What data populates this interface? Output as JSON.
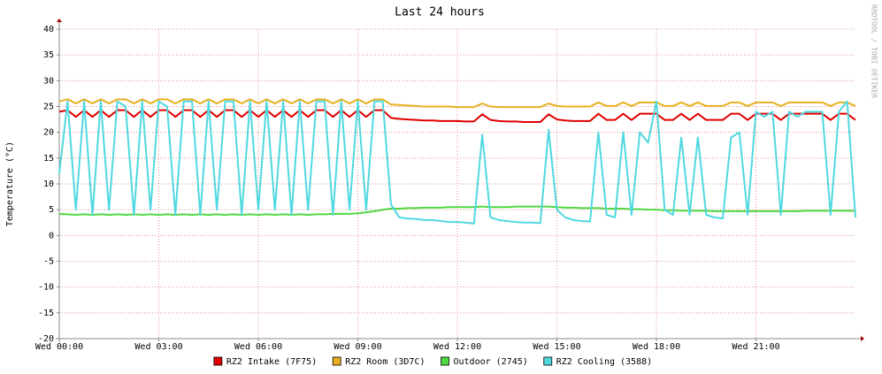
{
  "chart_data": {
    "type": "line",
    "title": "Last 24 hours",
    "y_label": "Temperature (°C)",
    "watermark": "RRDTOOL / TOBI OETIKER",
    "xlim": [
      0,
      24
    ],
    "ylim": [
      -20,
      40
    ],
    "xticks": [
      {
        "value": 0,
        "label": "Wed 00:00"
      },
      {
        "value": 3,
        "label": "Wed 03:00"
      },
      {
        "value": 6,
        "label": "Wed 06:00"
      },
      {
        "value": 9,
        "label": "Wed 09:00"
      },
      {
        "value": 12,
        "label": "Wed 12:00"
      },
      {
        "value": 15,
        "label": "Wed 15:00"
      },
      {
        "value": 18,
        "label": "Wed 18:00"
      },
      {
        "value": 21,
        "label": "Wed 21:00"
      }
    ],
    "yticks": [
      -20,
      -15,
      -10,
      -5,
      0,
      5,
      10,
      15,
      20,
      25,
      30,
      35,
      40
    ],
    "grid": true,
    "legend": "bottom",
    "x": [
      0,
      0.25,
      0.5,
      0.75,
      1,
      1.25,
      1.5,
      1.75,
      2,
      2.25,
      2.5,
      2.75,
      3,
      3.25,
      3.5,
      3.75,
      4,
      4.25,
      4.5,
      4.75,
      5,
      5.25,
      5.5,
      5.75,
      6,
      6.25,
      6.5,
      6.75,
      7,
      7.25,
      7.5,
      7.75,
      8,
      8.25,
      8.5,
      8.75,
      9,
      9.25,
      9.5,
      9.75,
      10,
      10.25,
      10.5,
      10.75,
      11,
      11.25,
      11.5,
      11.75,
      12,
      12.25,
      12.5,
      12.75,
      13,
      13.25,
      13.5,
      13.75,
      14,
      14.25,
      14.5,
      14.75,
      15,
      15.25,
      15.5,
      15.75,
      16,
      16.25,
      16.5,
      16.75,
      17,
      17.25,
      17.5,
      17.75,
      18,
      18.25,
      18.5,
      18.75,
      19,
      19.25,
      19.5,
      19.75,
      20,
      20.25,
      20.5,
      20.75,
      21,
      21.25,
      21.5,
      21.75,
      22,
      22.25,
      22.5,
      22.75,
      23,
      23.25,
      23.5,
      23.75,
      24
    ],
    "series": [
      {
        "name": "RZ2 Intake (7F75)",
        "color": "#e00000",
        "values": [
          24,
          24.3,
          23,
          24.3,
          23,
          24.3,
          23,
          24.3,
          24.3,
          23,
          24.3,
          23,
          24.3,
          24.3,
          23,
          24.3,
          24.3,
          23,
          24.3,
          23,
          24.3,
          24.3,
          23,
          24.3,
          23,
          24.3,
          23,
          24.3,
          23,
          24.3,
          23,
          24.3,
          24.3,
          23,
          24.3,
          23,
          24.3,
          23,
          24.3,
          24.3,
          22.8,
          22.6,
          22.5,
          22.4,
          22.3,
          22.3,
          22.2,
          22.2,
          22.2,
          22.1,
          22.1,
          23.5,
          22.4,
          22.2,
          22.1,
          22.1,
          22,
          22,
          22,
          23.5,
          22.5,
          22.3,
          22.2,
          22.2,
          22.2,
          23.6,
          22.4,
          22.4,
          23.6,
          22.4,
          23.6,
          23.6,
          23.6,
          22.4,
          22.4,
          23.6,
          22.4,
          23.6,
          22.4,
          22.4,
          22.4,
          23.6,
          23.6,
          22.4,
          23.6,
          23.6,
          23.6,
          22.4,
          23.6,
          23.6,
          23.6,
          23.6,
          23.6,
          22.4,
          23.6,
          23.6,
          22.4
        ]
      },
      {
        "name": "RZ2 Room (3D7C)",
        "color": "#e8b020",
        "values": [
          26,
          26.4,
          25.6,
          26.4,
          25.6,
          26.4,
          25.6,
          26.4,
          26.4,
          25.6,
          26.4,
          25.6,
          26.4,
          26.4,
          25.6,
          26.4,
          26.4,
          25.6,
          26.4,
          25.6,
          26.4,
          26.4,
          25.6,
          26.4,
          25.6,
          26.4,
          25.6,
          26.4,
          25.6,
          26.4,
          25.6,
          26.4,
          26.4,
          25.6,
          26.4,
          25.6,
          26.4,
          25.6,
          26.4,
          26.4,
          25.4,
          25.3,
          25.2,
          25.1,
          25,
          25,
          25,
          25,
          24.9,
          24.9,
          24.9,
          25.6,
          25,
          24.9,
          24.9,
          24.9,
          24.9,
          24.9,
          24.9,
          25.6,
          25.1,
          25,
          25,
          25,
          25,
          25.8,
          25.1,
          25.1,
          25.8,
          25.1,
          25.8,
          25.8,
          25.8,
          25.1,
          25.1,
          25.8,
          25.1,
          25.8,
          25.1,
          25.1,
          25.1,
          25.8,
          25.8,
          25.1,
          25.8,
          25.8,
          25.8,
          25.1,
          25.8,
          25.8,
          25.8,
          25.8,
          25.8,
          25.1,
          25.8,
          25.8,
          25.1
        ]
      },
      {
        "name": "Outdoor (2745)",
        "color": "#50d840",
        "values": [
          4.2,
          4.1,
          4,
          4.1,
          4,
          4.1,
          4,
          4.1,
          4,
          4.1,
          4,
          4.1,
          4,
          4.1,
          4,
          4.1,
          4,
          4.1,
          4,
          4.1,
          4,
          4.1,
          4,
          4.1,
          4,
          4.1,
          4,
          4.1,
          4,
          4.1,
          4,
          4.1,
          4.1,
          4.2,
          4.2,
          4.2,
          4.3,
          4.5,
          4.7,
          5,
          5.2,
          5.2,
          5.3,
          5.3,
          5.4,
          5.4,
          5.4,
          5.5,
          5.5,
          5.5,
          5.5,
          5.6,
          5.5,
          5.5,
          5.5,
          5.6,
          5.6,
          5.6,
          5.6,
          5.6,
          5.5,
          5.4,
          5.4,
          5.3,
          5.3,
          5.3,
          5.2,
          5.2,
          5.2,
          5.1,
          5.1,
          5,
          5,
          4.9,
          4.9,
          4.8,
          4.8,
          4.8,
          4.8,
          4.7,
          4.7,
          4.7,
          4.7,
          4.7,
          4.7,
          4.7,
          4.7,
          4.7,
          4.7,
          4.7,
          4.8,
          4.8,
          4.8,
          4.8,
          4.8,
          4.8,
          4.8
        ]
      },
      {
        "name": "RZ2 Cooling (3588)",
        "color": "#50d8e0",
        "values": [
          12,
          26,
          5,
          26,
          4,
          26,
          5,
          26,
          25,
          4,
          26,
          5,
          26,
          25,
          4,
          26,
          26,
          4,
          26,
          5,
          26,
          26,
          4,
          26,
          5,
          26,
          5,
          26,
          4,
          26,
          5,
          26,
          26,
          4,
          26,
          5,
          26,
          5,
          26,
          26,
          6,
          3.5,
          3.3,
          3.2,
          3.0,
          3.0,
          2.8,
          2.6,
          2.6,
          2.5,
          2.3,
          19.5,
          3.5,
          3.0,
          2.8,
          2.6,
          2.5,
          2.5,
          2.4,
          20.5,
          5,
          3.5,
          3.0,
          2.8,
          2.7,
          20,
          4,
          3.5,
          20,
          4,
          20,
          18,
          26,
          5,
          4,
          19,
          4,
          19,
          4,
          3.5,
          3.3,
          19,
          20,
          4,
          24,
          23,
          24,
          4,
          24,
          23,
          24,
          24,
          24,
          4,
          24,
          26,
          3.5
        ]
      }
    ]
  }
}
